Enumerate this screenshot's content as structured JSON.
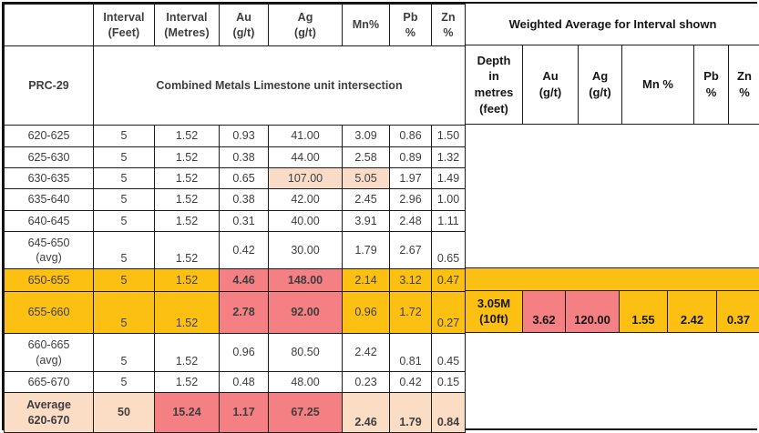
{
  "colors": {
    "orange": "#fcc013",
    "red": "#f58084",
    "peach": "#f9dcc8",
    "avgpeach": "#fbdcc5"
  },
  "table": {
    "drillhole_id": "PRC-29",
    "section_title": "Combined Metals Limestone unit intersection",
    "left_header": [
      "Interval\n(Feet)",
      "Interval\n(Metres)",
      "Au\n(g/t)",
      "Ag\n(g/t)",
      "Mn%",
      "Pb\n%",
      "Zn\n%"
    ],
    "right_header": {
      "title": "Weighted Average for Interval shown",
      "cols": [
        "Depth\nin\nmetres\n(feet)",
        "Au\n(g/t)",
        "Ag\n(g/t)",
        "Mn %",
        "Pb\n%",
        "Zn\n%"
      ]
    },
    "rows": [
      {
        "label": "620-625",
        "bg": "white",
        "cells": [
          {
            "v": "5"
          },
          {
            "v": "1.52"
          },
          {
            "v": "0.93"
          },
          {
            "v": "41.00"
          },
          {
            "v": "3.09"
          },
          {
            "v": "0.86"
          },
          {
            "v": "1.50"
          }
        ]
      },
      {
        "label": "625-630",
        "bg": "white",
        "cells": [
          {
            "v": "5"
          },
          {
            "v": "1.52"
          },
          {
            "v": "0.38"
          },
          {
            "v": "44.00"
          },
          {
            "v": "2.58"
          },
          {
            "v": "0.89"
          },
          {
            "v": "1.32"
          }
        ]
      },
      {
        "label": "630-635",
        "bg": "white",
        "cells": [
          {
            "v": "5"
          },
          {
            "v": "1.52"
          },
          {
            "v": "0.65"
          },
          {
            "v": "107.00",
            "hl": "peach"
          },
          {
            "v": "5.05",
            "hl": "peach"
          },
          {
            "v": "1.97"
          },
          {
            "v": "1.49"
          }
        ]
      },
      {
        "label": "635-640",
        "bg": "white",
        "cells": [
          {
            "v": "5"
          },
          {
            "v": "1.52"
          },
          {
            "v": "0.38"
          },
          {
            "v": "42.00"
          },
          {
            "v": "2.45"
          },
          {
            "v": "2.96"
          },
          {
            "v": "1.00"
          }
        ]
      },
      {
        "label": "640-645",
        "bg": "white",
        "cells": [
          {
            "v": "5"
          },
          {
            "v": "1.52"
          },
          {
            "v": "0.31"
          },
          {
            "v": "40.00"
          },
          {
            "v": "3.91"
          },
          {
            "v": "2.48"
          },
          {
            "v": "1.11"
          }
        ]
      },
      {
        "label": "645-650\n(avg)",
        "bg": "white",
        "cells": [
          {
            "v": "5",
            "va": "b"
          },
          {
            "v": "1.52",
            "va": "b"
          },
          {
            "v": "0.42"
          },
          {
            "v": "30.00"
          },
          {
            "v": "1.79"
          },
          {
            "v": "2.67"
          },
          {
            "v": "0.65",
            "va": "b"
          }
        ]
      },
      {
        "label": "650-655",
        "bg": "orange",
        "cells": [
          {
            "v": "5"
          },
          {
            "v": "1.52"
          },
          {
            "v": "4.46",
            "hl": "red",
            "b": true
          },
          {
            "v": "148.00",
            "hl": "red",
            "b": true
          },
          {
            "v": "2.14"
          },
          {
            "v": "3.12"
          },
          {
            "v": "0.47"
          }
        ]
      },
      {
        "label": "655-660",
        "bg": "orange",
        "cells": [
          {
            "v": "5",
            "va": "b"
          },
          {
            "v": "1.52",
            "va": "b"
          },
          {
            "v": "2.78",
            "hl": "red",
            "b": true
          },
          {
            "v": "92.00",
            "hl": "red",
            "b": true
          },
          {
            "v": "0.96"
          },
          {
            "v": "1.72"
          },
          {
            "v": "0.27",
            "va": "b"
          }
        ]
      },
      {
        "label": "660-665\n(avg)",
        "bg": "white",
        "cells": [
          {
            "v": "5",
            "va": "b"
          },
          {
            "v": "1.52",
            "va": "b"
          },
          {
            "v": "0.96"
          },
          {
            "v": "80.50"
          },
          {
            "v": "2.42"
          },
          {
            "v": "0.81",
            "va": "b"
          },
          {
            "v": "0.45",
            "va": "b"
          }
        ]
      },
      {
        "label": "665-670",
        "bg": "white",
        "cells": [
          {
            "v": "5"
          },
          {
            "v": "1.52"
          },
          {
            "v": "0.48"
          },
          {
            "v": "48.00"
          },
          {
            "v": "0.23"
          },
          {
            "v": "0.42"
          },
          {
            "v": "0.15"
          }
        ]
      },
      {
        "label": "Average\n620-670",
        "bg": "peach",
        "label_bold": true,
        "cells": [
          {
            "v": "50",
            "b": true
          },
          {
            "v": "15.24",
            "hl": "red",
            "b": true
          },
          {
            "v": "1.17",
            "hl": "red",
            "b": true
          },
          {
            "v": "67.25",
            "hl": "red",
            "b": true
          },
          {
            "v": "2.46",
            "b": true,
            "va": "b"
          },
          {
            "v": "1.79",
            "b": true,
            "va": "b"
          },
          {
            "v": "0.84",
            "b": true,
            "va": "b"
          }
        ]
      }
    ],
    "weighted": {
      "cells": [
        {
          "v": "3.05M\n(10ft)"
        },
        {
          "v": "3.62",
          "hl": "red"
        },
        {
          "v": "120.00",
          "hl": "red"
        },
        {
          "v": "1.55"
        },
        {
          "v": "2.42"
        },
        {
          "v": "0.37"
        }
      ]
    }
  }
}
